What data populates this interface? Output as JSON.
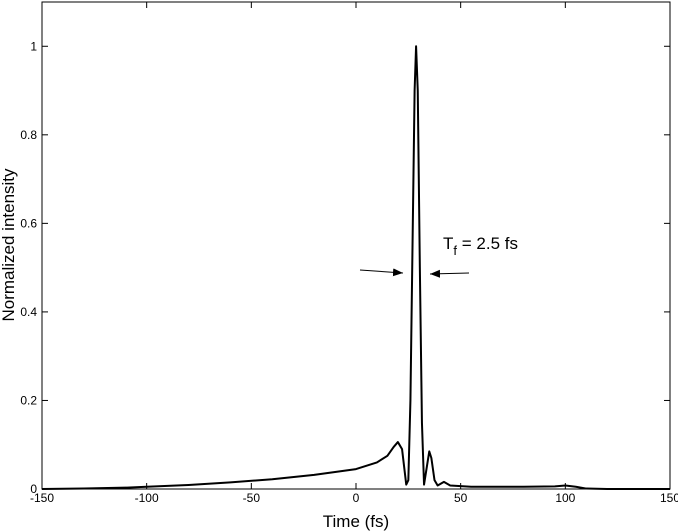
{
  "chart_data": {
    "type": "line",
    "xlabel": "Time (fs)",
    "ylabel": "Normalized intensity",
    "annotation": [
      "T",
      "f",
      " = 2.5 fs"
    ],
    "xlim": [
      -150,
      150
    ],
    "xticks": [
      -150,
      -100,
      -50,
      0,
      50,
      100,
      150
    ],
    "ylim": [
      0,
      1.1
    ],
    "yticks": [
      0,
      0.2,
      0.4,
      0.6,
      0.8,
      1
    ],
    "grid": false,
    "series": [
      {
        "color": "#000000",
        "x": [
          -150,
          -130,
          -110,
          -100,
          -80,
          -60,
          -40,
          -20,
          0,
          10,
          15,
          18,
          20,
          22,
          23,
          24,
          25,
          26,
          27,
          28,
          28.7,
          29.5,
          30.5,
          31.5,
          32.5,
          33.5,
          35,
          36,
          37.5,
          39,
          42,
          45,
          55,
          80,
          95,
          100,
          105,
          110,
          120,
          150
        ],
        "values": [
          0,
          0.001,
          0.003,
          0.005,
          0.009,
          0.015,
          0.022,
          0.032,
          0.045,
          0.06,
          0.075,
          0.095,
          0.106,
          0.09,
          0.05,
          0.01,
          0.02,
          0.2,
          0.55,
          0.9,
          1.0,
          0.9,
          0.5,
          0.15,
          0.01,
          0.04,
          0.085,
          0.07,
          0.02,
          0.008,
          0.016,
          0.008,
          0.005,
          0.005,
          0.006,
          0.008,
          0.005,
          0.001,
          0,
          0
        ]
      }
    ]
  }
}
